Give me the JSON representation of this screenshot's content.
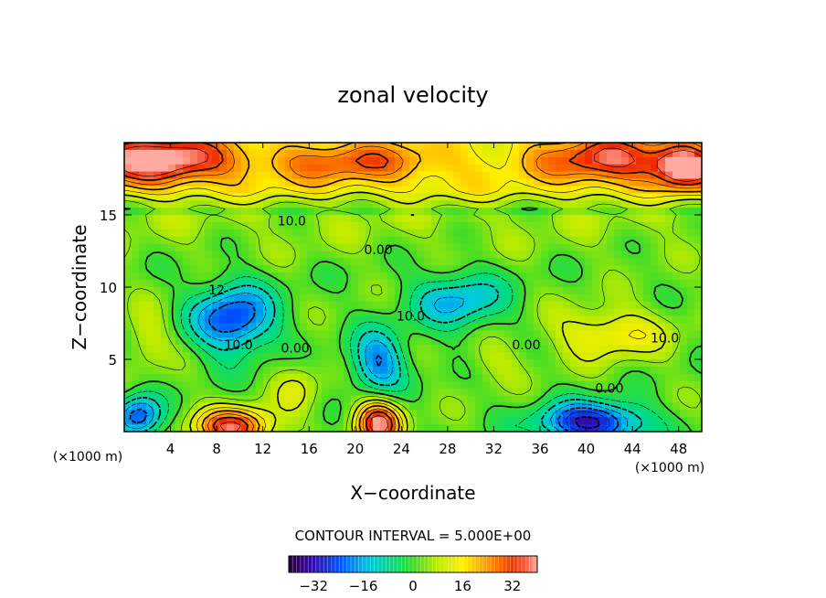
{
  "chart_data": {
    "type": "heatmap",
    "title": "zonal velocity",
    "xlabel": "X−coordinate",
    "ylabel": "Z−coordinate",
    "x_unit_left": "(×1000 m)",
    "x_unit_right": "(×1000 m)",
    "xlim": [
      0,
      50
    ],
    "ylim": [
      0,
      20
    ],
    "x_ticks": [
      4,
      8,
      12,
      16,
      20,
      24,
      28,
      32,
      36,
      40,
      44,
      48
    ],
    "y_ticks": [
      5,
      10,
      15
    ],
    "contour_interval_text": "CONTOUR INTERVAL = 5.000E+00",
    "colorbar": {
      "vmin": -40,
      "vmax": 40,
      "ticks": [
        -32,
        -16,
        0,
        16,
        32
      ],
      "tick_labels": [
        "−32",
        "−16",
        "0",
        "16",
        "32"
      ]
    },
    "contour_labels": [
      {
        "text": "10.0",
        "x": 14.5,
        "y": 14.6
      },
      {
        "text": "0.00",
        "x": 22.0,
        "y": 12.6
      },
      {
        "text": "10.0",
        "x": 9.9,
        "y": 6.0
      },
      {
        "text": "0.00",
        "x": 14.8,
        "y": 5.8
      },
      {
        "text": "10.0",
        "x": 24.8,
        "y": 8.0
      },
      {
        "text": "0.00",
        "x": 34.8,
        "y": 6.0
      },
      {
        "text": "10.0",
        "x": 46.8,
        "y": 6.5
      },
      {
        "text": "0.00",
        "x": 42.0,
        "y": 3.0
      },
      {
        "text": "12",
        "x": 8.0,
        "y": 9.8
      }
    ],
    "features": [
      {
        "x": 3.0,
        "y": 18.8,
        "value": 30,
        "sx": 6.0,
        "sy": 1.6
      },
      {
        "x": 20.0,
        "y": 18.6,
        "value": 15,
        "sx": 8.0,
        "sy": 1.4
      },
      {
        "x": 42.0,
        "y": 18.8,
        "value": 22,
        "sx": 6.0,
        "sy": 1.6
      },
      {
        "x": 48.5,
        "y": 18.3,
        "value": 30,
        "sx": 2.5,
        "sy": 1.4
      },
      {
        "x": 9.5,
        "y": 7.8,
        "value": -28,
        "sx": 3.5,
        "sy": 2.4
      },
      {
        "x": 22.0,
        "y": 4.8,
        "value": -22,
        "sx": 2.4,
        "sy": 2.2
      },
      {
        "x": 29.0,
        "y": 9.0,
        "value": -18,
        "sx": 4.0,
        "sy": 2.0
      },
      {
        "x": 40.5,
        "y": 0.6,
        "value": -34,
        "sx": 4.5,
        "sy": 1.4
      },
      {
        "x": 1.2,
        "y": 1.0,
        "value": -26,
        "sx": 2.0,
        "sy": 1.5
      },
      {
        "x": 9.5,
        "y": 0.3,
        "value": 34,
        "sx": 3.2,
        "sy": 1.3
      },
      {
        "x": 22.0,
        "y": 0.6,
        "value": 36,
        "sx": 2.0,
        "sy": 1.6
      },
      {
        "x": 42.0,
        "y": 6.8,
        "value": 14,
        "sx": 5.0,
        "sy": 1.8
      },
      {
        "x": 2.0,
        "y": 6.5,
        "value": 8,
        "sx": 2.0,
        "sy": 2.0
      },
      {
        "x": 15.0,
        "y": 3.0,
        "value": 8,
        "sx": 2.0,
        "sy": 2.0
      },
      {
        "x": 32.0,
        "y": 5.0,
        "value": 6,
        "sx": 2.5,
        "sy": 1.5
      }
    ]
  }
}
